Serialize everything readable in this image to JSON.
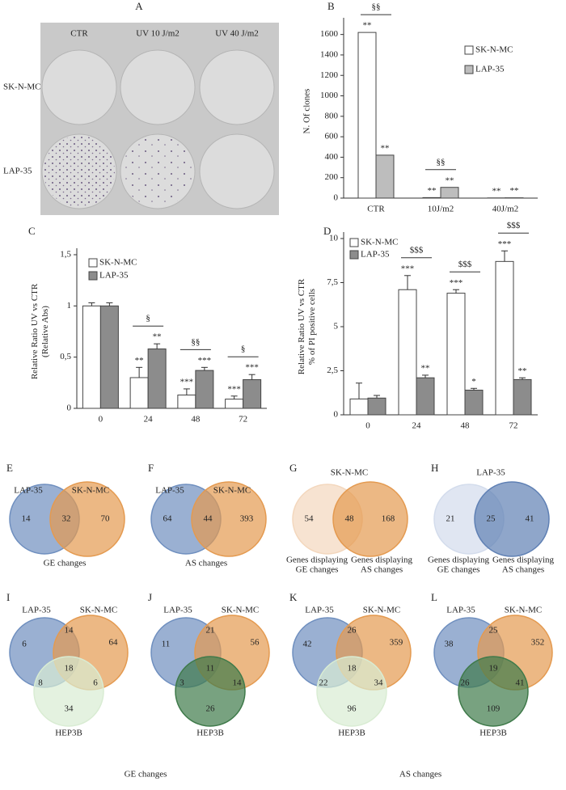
{
  "photo": {
    "letter": "A",
    "columns": [
      "CTR",
      "UV 10 J/m2",
      "UV 40 J/m2"
    ],
    "rows": [
      "SK-N-MC",
      "LAP-35"
    ]
  },
  "chart_data": [
    {
      "type": "bar",
      "panel": "B",
      "ylabel": [
        "N. Of clones"
      ],
      "categories": [
        "CTR",
        "10J/m2",
        "40J/m2"
      ],
      "series": [
        {
          "name": "SK-N-MC",
          "color": "#ffffff",
          "values": [
            1620,
            5,
            2
          ],
          "stars": [
            "**",
            "**",
            "**"
          ]
        },
        {
          "name": "LAP-35",
          "color": "#bdbdbd",
          "values": [
            420,
            105,
            3
          ],
          "stars": [
            "**",
            "**",
            "**"
          ]
        }
      ],
      "brackets": [
        "§§",
        "§§",
        null
      ],
      "ylim": [
        0,
        1700
      ],
      "yticks": [
        0,
        200,
        400,
        600,
        800,
        1000,
        1200,
        1400,
        1600
      ]
    },
    {
      "type": "bar",
      "panel": "C",
      "ylabel": [
        "Relative Ratio UV vs CTR",
        "(Relative Abs)"
      ],
      "categories": [
        "0",
        "24",
        "48",
        "72"
      ],
      "series": [
        {
          "name": "SK-N-MC",
          "color": "#ffffff",
          "values": [
            1,
            0.3,
            0.13,
            0.09
          ],
          "errors": [
            0.03,
            0.1,
            0.06,
            0.03
          ],
          "stars": [
            null,
            "**",
            "***",
            "***"
          ]
        },
        {
          "name": "LAP-35",
          "color": "#8c8c8c",
          "values": [
            1,
            0.58,
            0.37,
            0.28
          ],
          "errors": [
            0.03,
            0.05,
            0.03,
            0.05
          ],
          "stars": [
            null,
            "**",
            "***",
            "***"
          ]
        }
      ],
      "brackets": [
        null,
        "§",
        "§§",
        "§"
      ],
      "ylim": [
        0,
        1.5
      ],
      "yticks": [
        0,
        {
          "value": 0.5,
          "label": "0,5"
        },
        1,
        {
          "value": 1.5,
          "label": "1,5"
        }
      ]
    },
    {
      "type": "bar",
      "panel": "D",
      "ylabel": [
        "Relative Ratio UV vs CTR",
        "% of PI positive cells"
      ],
      "categories": [
        "0",
        "24",
        "48",
        "72"
      ],
      "series": [
        {
          "name": "SK-N-MC",
          "color": "#ffffff",
          "values": [
            0.9,
            7.1,
            6.9,
            8.7
          ],
          "errors": [
            0.9,
            0.8,
            0.2,
            0.6
          ],
          "stars": [
            null,
            "***",
            "***",
            "***"
          ]
        },
        {
          "name": "LAP-35",
          "color": "#8c8c8c",
          "values": [
            0.95,
            2.1,
            1.4,
            2.0
          ],
          "errors": [
            0.15,
            0.15,
            0.1,
            0.1
          ],
          "stars": [
            null,
            "**",
            "*",
            "**"
          ]
        }
      ],
      "brackets": [
        null,
        "$$$",
        "$$$",
        "$$$"
      ],
      "ylim": [
        0,
        10
      ],
      "yticks": [
        0,
        {
          "value": 2.5,
          "label": "2,5"
        },
        5,
        {
          "value": 7.5,
          "label": "7,5"
        },
        10
      ]
    }
  ],
  "venns": [
    {
      "letter": "E",
      "sets": [
        {
          "label": [
            "LAP-35"
          ],
          "color": "#6f8fbf"
        },
        {
          "label": [
            "SK-N-MC"
          ],
          "color": "#e49a50"
        }
      ],
      "values": [
        14,
        32,
        70
      ],
      "caption": "GE changes"
    },
    {
      "letter": "F",
      "sets": [
        {
          "label": [
            "LAP-35"
          ],
          "color": "#6f8fbf"
        },
        {
          "label": [
            "SK-N-MC"
          ],
          "color": "#e49a50"
        }
      ],
      "values": [
        64,
        44,
        393
      ],
      "caption": "AS changes"
    },
    {
      "letter": "G",
      "title": "SK-N-MC",
      "sets": [
        {
          "label": [
            "Genes displaying",
            "GE changes"
          ],
          "color": "#f3d7bd"
        },
        {
          "label": [
            "Genes displaying",
            "AS changes"
          ],
          "color": "#e49a50"
        }
      ],
      "values": [
        54,
        48,
        168
      ]
    },
    {
      "letter": "H",
      "title": "LAP-35",
      "sets": [
        {
          "label": [
            "Genes displaying",
            "GE changes"
          ],
          "color": "#d3dcec"
        },
        {
          "label": [
            "Genes displaying",
            "AS changes"
          ],
          "color": "#5f80b4"
        }
      ],
      "values": [
        21,
        25,
        41
      ]
    },
    {
      "letter": "I",
      "sets": [
        {
          "label": [
            "LAP-35"
          ],
          "color": "#6f8fbf"
        },
        {
          "label": [
            "SK-N-MC"
          ],
          "color": "#e49a50"
        },
        {
          "label": [
            "HEP3B"
          ],
          "color": "#d9ecd3"
        }
      ],
      "values": [
        6,
        14,
        64,
        8,
        18,
        6,
        34
      ]
    },
    {
      "letter": "J",
      "sets": [
        {
          "label": [
            "LAP-35"
          ],
          "color": "#6f8fbf"
        },
        {
          "label": [
            "SK-N-MC"
          ],
          "color": "#e49a50"
        },
        {
          "label": [
            "HEP3B"
          ],
          "color": "#3f7a4a"
        }
      ],
      "values": [
        11,
        21,
        56,
        3,
        11,
        14,
        26
      ]
    },
    {
      "letter": "K",
      "sets": [
        {
          "label": [
            "LAP-35"
          ],
          "color": "#6f8fbf"
        },
        {
          "label": [
            "SK-N-MC"
          ],
          "color": "#e49a50"
        },
        {
          "label": [
            "HEP3B"
          ],
          "color": "#d9ecd3"
        }
      ],
      "values": [
        42,
        26,
        359,
        22,
        18,
        34,
        96
      ]
    },
    {
      "letter": "L",
      "sets": [
        {
          "label": [
            "LAP-35"
          ],
          "color": "#6f8fbf"
        },
        {
          "label": [
            "SK-N-MC"
          ],
          "color": "#e49a50"
        },
        {
          "label": [
            "HEP3B"
          ],
          "color": "#3f7a4a"
        }
      ],
      "values": [
        38,
        25,
        352,
        26,
        19,
        41,
        109
      ]
    }
  ],
  "group_captions": [
    "GE changes",
    "AS changes"
  ]
}
